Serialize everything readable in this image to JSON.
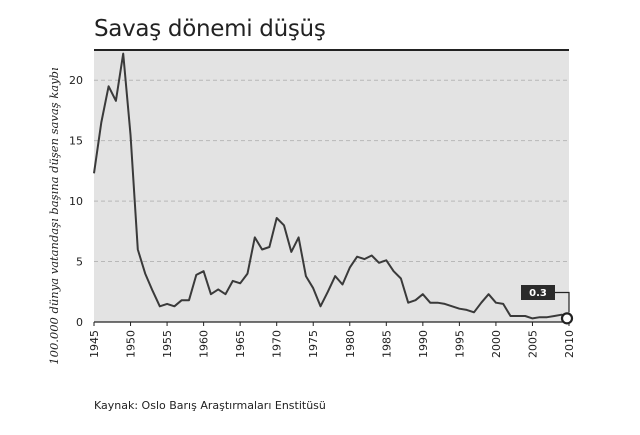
{
  "chart_data": {
    "type": "line",
    "title": "Savaş dönemi düşüş",
    "ylabel": "100.000 dünya vatandaşı başına düşen savaş kaybı",
    "xlabel": "",
    "source": "Kaynak: Oslo Barış Araştırmaları Enstitüsü",
    "xlim": [
      1945,
      2010
    ],
    "ylim": [
      0,
      22.5
    ],
    "yticks": [
      0,
      5,
      10,
      15,
      20
    ],
    "xticks": [
      1945,
      1950,
      1955,
      1960,
      1965,
      1970,
      1975,
      1980,
      1985,
      1990,
      1995,
      2000,
      2005,
      2010
    ],
    "grid": true,
    "annotation": {
      "label": "0.3",
      "x": 2010,
      "y": 0.3
    },
    "colors": {
      "background": "#e3e3e3",
      "line": "#3a3a3a",
      "grid": "#b8b8b8",
      "callout": "#2b2b2b"
    },
    "series": [
      {
        "x": [
          1945,
          1946,
          1947,
          1948,
          1949,
          1950,
          1951,
          1952,
          1953,
          1954,
          1955,
          1956,
          1957,
          1958,
          1959,
          1960,
          1961,
          1962,
          1963,
          1964,
          1965,
          1966,
          1967,
          1968,
          1969,
          1970,
          1971,
          1972,
          1973,
          1974,
          1975,
          1976,
          1977,
          1978,
          1979,
          1980,
          1981,
          1982,
          1983,
          1984,
          1985,
          1986,
          1987,
          1988,
          1989,
          1990,
          1991,
          1992,
          1993,
          1994,
          1995,
          1996,
          1997,
          1998,
          1999,
          2000,
          2001,
          2002,
          2003,
          2004,
          2005,
          2006,
          2007,
          2008,
          2009,
          2010
        ],
        "values": [
          12.3,
          16.5,
          19.5,
          18.3,
          22.2,
          15.5,
          6.0,
          4.0,
          2.6,
          1.3,
          1.5,
          1.3,
          1.8,
          1.8,
          3.9,
          4.2,
          2.3,
          2.7,
          2.3,
          3.4,
          3.2,
          4.0,
          7.0,
          6.0,
          6.2,
          8.6,
          8.0,
          5.8,
          7.0,
          3.8,
          2.8,
          1.3,
          2.5,
          3.8,
          3.1,
          4.5,
          5.4,
          5.2,
          5.5,
          4.9,
          5.1,
          4.2,
          3.6,
          1.6,
          1.8,
          2.3,
          1.6,
          1.6,
          1.5,
          1.3,
          1.1,
          1.0,
          0.8,
          1.6,
          2.3,
          1.6,
          1.5,
          0.5,
          0.5,
          0.5,
          0.3,
          0.4,
          0.4,
          0.5,
          0.6,
          0.3
        ]
      }
    ]
  }
}
